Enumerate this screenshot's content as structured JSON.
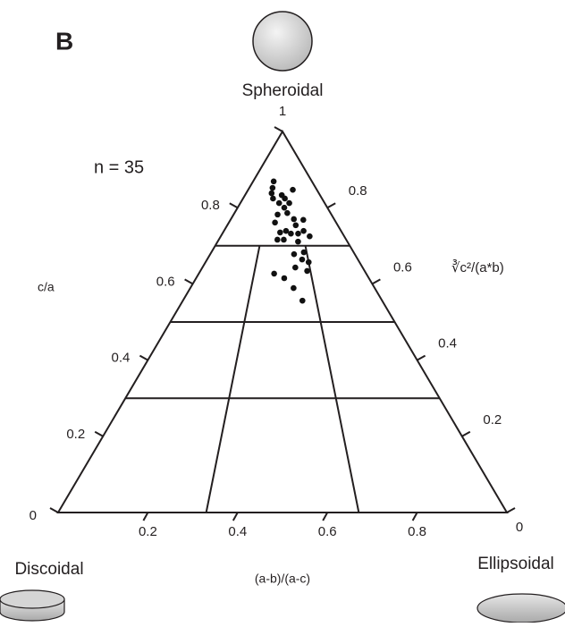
{
  "chart_data": {
    "type": "ternary",
    "title": "B",
    "annotation": "n = 35",
    "vertex_labels": {
      "top": "Spheroidal",
      "left": "Discoidal",
      "right": "Ellipsoidal"
    },
    "xlabel": "(a-b)/(a-c)",
    "ylabel": "c/a",
    "y2label": "∛c²/(a*b)",
    "xlim": [
      0,
      1
    ],
    "ylim": [
      0,
      1
    ],
    "y2lim": [
      0,
      1
    ],
    "xticks": [
      0.2,
      0.4,
      0.6,
      0.8
    ],
    "yticks": [
      0,
      0.2,
      0.4,
      0.6,
      0.8,
      1
    ],
    "y2ticks": [
      0,
      0.2,
      0.4,
      0.6,
      0.8
    ],
    "boundaries_y": [
      0.3,
      0.5,
      0.7
    ],
    "boundaries_x": [
      0.33,
      0.67
    ],
    "series": [
      {
        "color": "#111111",
        "x": [
          0.35,
          0.35,
          0.35,
          0.38,
          0.49,
          0.46,
          0.53,
          0.52,
          0.55,
          0.65,
          0.58,
          0.45,
          0.43,
          0.61,
          0.7,
          0.62,
          0.53,
          0.63,
          0.57,
          0.48,
          0.46,
          0.51,
          0.68,
          0.72,
          0.62,
          0.58,
          0.65,
          0.63,
          0.67,
          0.58,
          0.65,
          0.45,
          0.51,
          0.56,
          0.6
        ],
        "values": [
          0.869,
          0.852,
          0.838,
          0.824,
          0.833,
          0.812,
          0.824,
          0.8,
          0.786,
          0.847,
          0.812,
          0.782,
          0.761,
          0.77,
          0.768,
          0.754,
          0.739,
          0.732,
          0.732,
          0.735,
          0.716,
          0.716,
          0.739,
          0.725,
          0.711,
          0.678,
          0.683,
          0.664,
          0.657,
          0.643,
          0.634,
          0.627,
          0.615,
          0.589,
          0.556
        ]
      }
    ]
  }
}
